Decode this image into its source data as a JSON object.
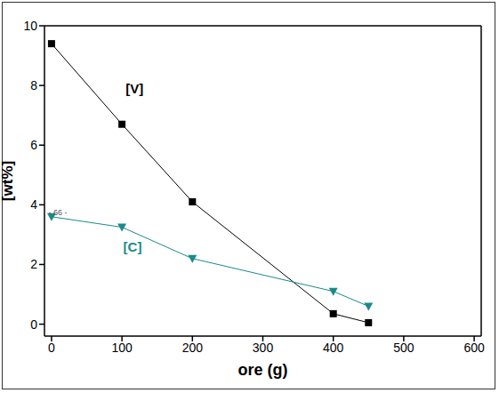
{
  "chart_data": {
    "type": "line",
    "x_label": "ore (g)",
    "y_label": "[wt%]",
    "xlim": [
      -10,
      610
    ],
    "xticks": [
      0,
      100,
      200,
      300,
      400,
      500,
      600
    ],
    "ylim": [
      -0.4,
      10
    ],
    "yticks": [
      0,
      2,
      4,
      6,
      8,
      10
    ],
    "series": [
      {
        "name": "[V]",
        "color": "#000000",
        "marker": "square",
        "line_style": "solid",
        "x": [
          0,
          100,
          200,
          400,
          450
        ],
        "values": [
          9.4,
          6.7,
          4.1,
          0.35,
          0.05
        ]
      },
      {
        "name": "[C]",
        "color": "#1a8a8c",
        "marker": "triangle-down",
        "line_style": "solid",
        "x": [
          0,
          100,
          200,
          400,
          450
        ],
        "values": [
          3.6,
          3.25,
          2.2,
          1.1,
          0.6
        ]
      }
    ],
    "annotations": [
      {
        "text": "[V]",
        "x": 118,
        "y": 7.9,
        "color": "#000000"
      },
      {
        "text": "[C]",
        "x": 115,
        "y": 2.6,
        "color": "#1a8a8c"
      },
      {
        "text": "- 66 -",
        "x": 9,
        "y": 3.75,
        "color": "#555555"
      }
    ]
  }
}
